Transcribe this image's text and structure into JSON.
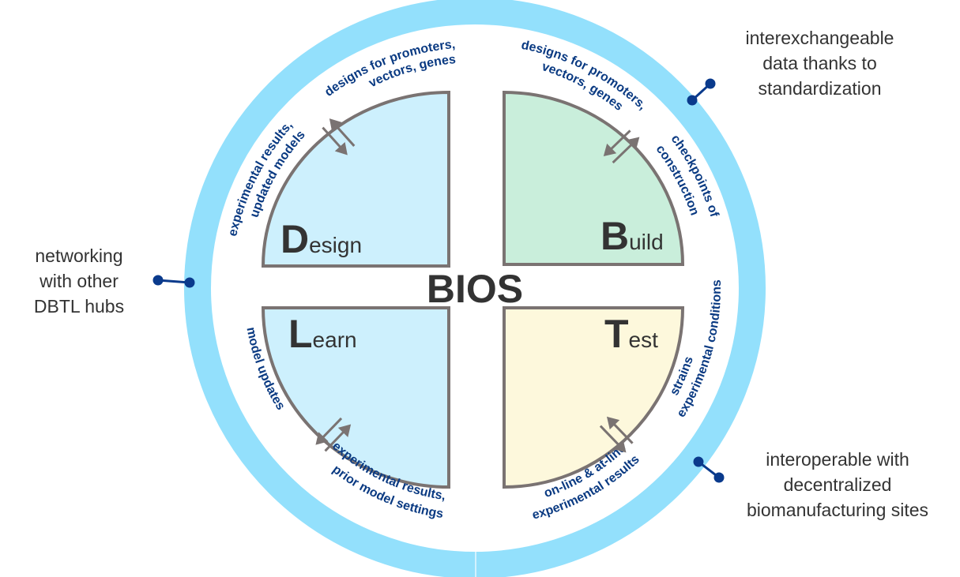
{
  "center_label": "BIOS",
  "colors": {
    "ring": "#93e0fc",
    "label_text": "#0a3a82",
    "quadrant_border": "#7a7372",
    "design": "#cdf0fd",
    "build": "#c9eedb",
    "test": "#fdf8dc",
    "learn": "#cdf0fd",
    "connector": "#0a3a8c"
  },
  "quadrants": [
    {
      "initial": "D",
      "rest": "esign"
    },
    {
      "initial": "B",
      "rest": "uild"
    },
    {
      "initial": "T",
      "rest": "est"
    },
    {
      "initial": "L",
      "rest": "earn"
    }
  ],
  "curved_labels": [
    "designs for promoters,",
    "vectors, genes",
    "experimental results,",
    "updated models",
    "designs for promoters,",
    "vectors, genes",
    "checkpoints of",
    "construction",
    "strains",
    "experimental conditions",
    "on-line & at-line",
    "experimental results",
    "model updates",
    "experimental results,",
    "prior model settings"
  ],
  "side_notes": {
    "top_right": [
      "interexchangeable",
      "data thanks to",
      "standardization"
    ],
    "left": [
      "networking",
      "with other",
      "DBTL hubs"
    ],
    "bottom_right": [
      "interoperable with",
      "decentralized",
      "biomanufacturing sites"
    ]
  }
}
